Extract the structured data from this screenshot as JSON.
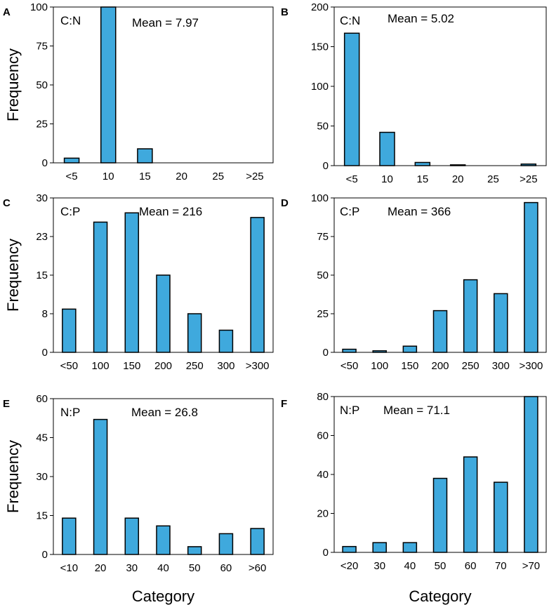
{
  "chart_data": [
    {
      "type": "bar",
      "panel": "A",
      "ratio_label": "C:N",
      "mean_label": "Mean = 7.97",
      "ylabel": "Frequency",
      "xlabel": "",
      "ylim": [
        0,
        100
      ],
      "yticks": [
        "0",
        "25",
        "50",
        "75",
        "100"
      ],
      "categories": [
        "<5",
        "10",
        "15",
        "20",
        "25",
        ">25"
      ],
      "values": [
        3,
        100,
        9,
        0,
        0,
        0
      ]
    },
    {
      "type": "bar",
      "panel": "B",
      "ratio_label": "C:N",
      "mean_label": "Mean = 5.02",
      "ylabel": "",
      "xlabel": "",
      "ylim": [
        0,
        200
      ],
      "yticks": [
        "0",
        "50",
        "100",
        "150",
        "200"
      ],
      "categories": [
        "<5",
        "10",
        "15",
        "20",
        "25",
        ">25"
      ],
      "values": [
        167,
        42,
        4,
        1,
        0,
        2
      ]
    },
    {
      "type": "bar",
      "panel": "C",
      "ratio_label": "C:P",
      "mean_label": "Mean = 216",
      "ylabel": "Frequency",
      "xlabel": "",
      "ylim": [
        0,
        30
      ],
      "yticks": [
        "0",
        "8",
        "15",
        "23",
        "30"
      ],
      "categories": [
        "<50",
        "100",
        "150",
        "200",
        "250",
        "300",
        ">300"
      ],
      "values": [
        8.4,
        25.3,
        27.1,
        15.0,
        7.5,
        4.3,
        26.2
      ]
    },
    {
      "type": "bar",
      "panel": "D",
      "ratio_label": "C:P",
      "mean_label": "Mean = 366",
      "ylabel": "",
      "xlabel": "",
      "ylim": [
        0,
        100
      ],
      "yticks": [
        "0",
        "25",
        "50",
        "75",
        "100"
      ],
      "categories": [
        "<50",
        "100",
        "150",
        "200",
        "250",
        "300",
        ">300"
      ],
      "values": [
        2,
        1,
        4,
        27,
        47,
        38,
        97
      ]
    },
    {
      "type": "bar",
      "panel": "E",
      "ratio_label": "N:P",
      "mean_label": "Mean = 26.8",
      "ylabel": "Frequency",
      "xlabel": "Category",
      "ylim": [
        0,
        60
      ],
      "yticks": [
        "0",
        "15",
        "30",
        "45",
        "60"
      ],
      "categories": [
        "<10",
        "20",
        "30",
        "40",
        "50",
        "60",
        ">60"
      ],
      "values": [
        14,
        52,
        14,
        11,
        3,
        8,
        10
      ]
    },
    {
      "type": "bar",
      "panel": "F",
      "ratio_label": "N:P",
      "mean_label": "Mean = 71.1",
      "ylabel": "",
      "xlabel": "Category",
      "ylim": [
        0,
        80
      ],
      "yticks": [
        "0",
        "20",
        "40",
        "60",
        "80"
      ],
      "categories": [
        "<20",
        "30",
        "40",
        "50",
        "60",
        "70",
        ">70"
      ],
      "values": [
        3,
        5,
        5,
        38,
        49,
        36,
        80
      ]
    }
  ]
}
